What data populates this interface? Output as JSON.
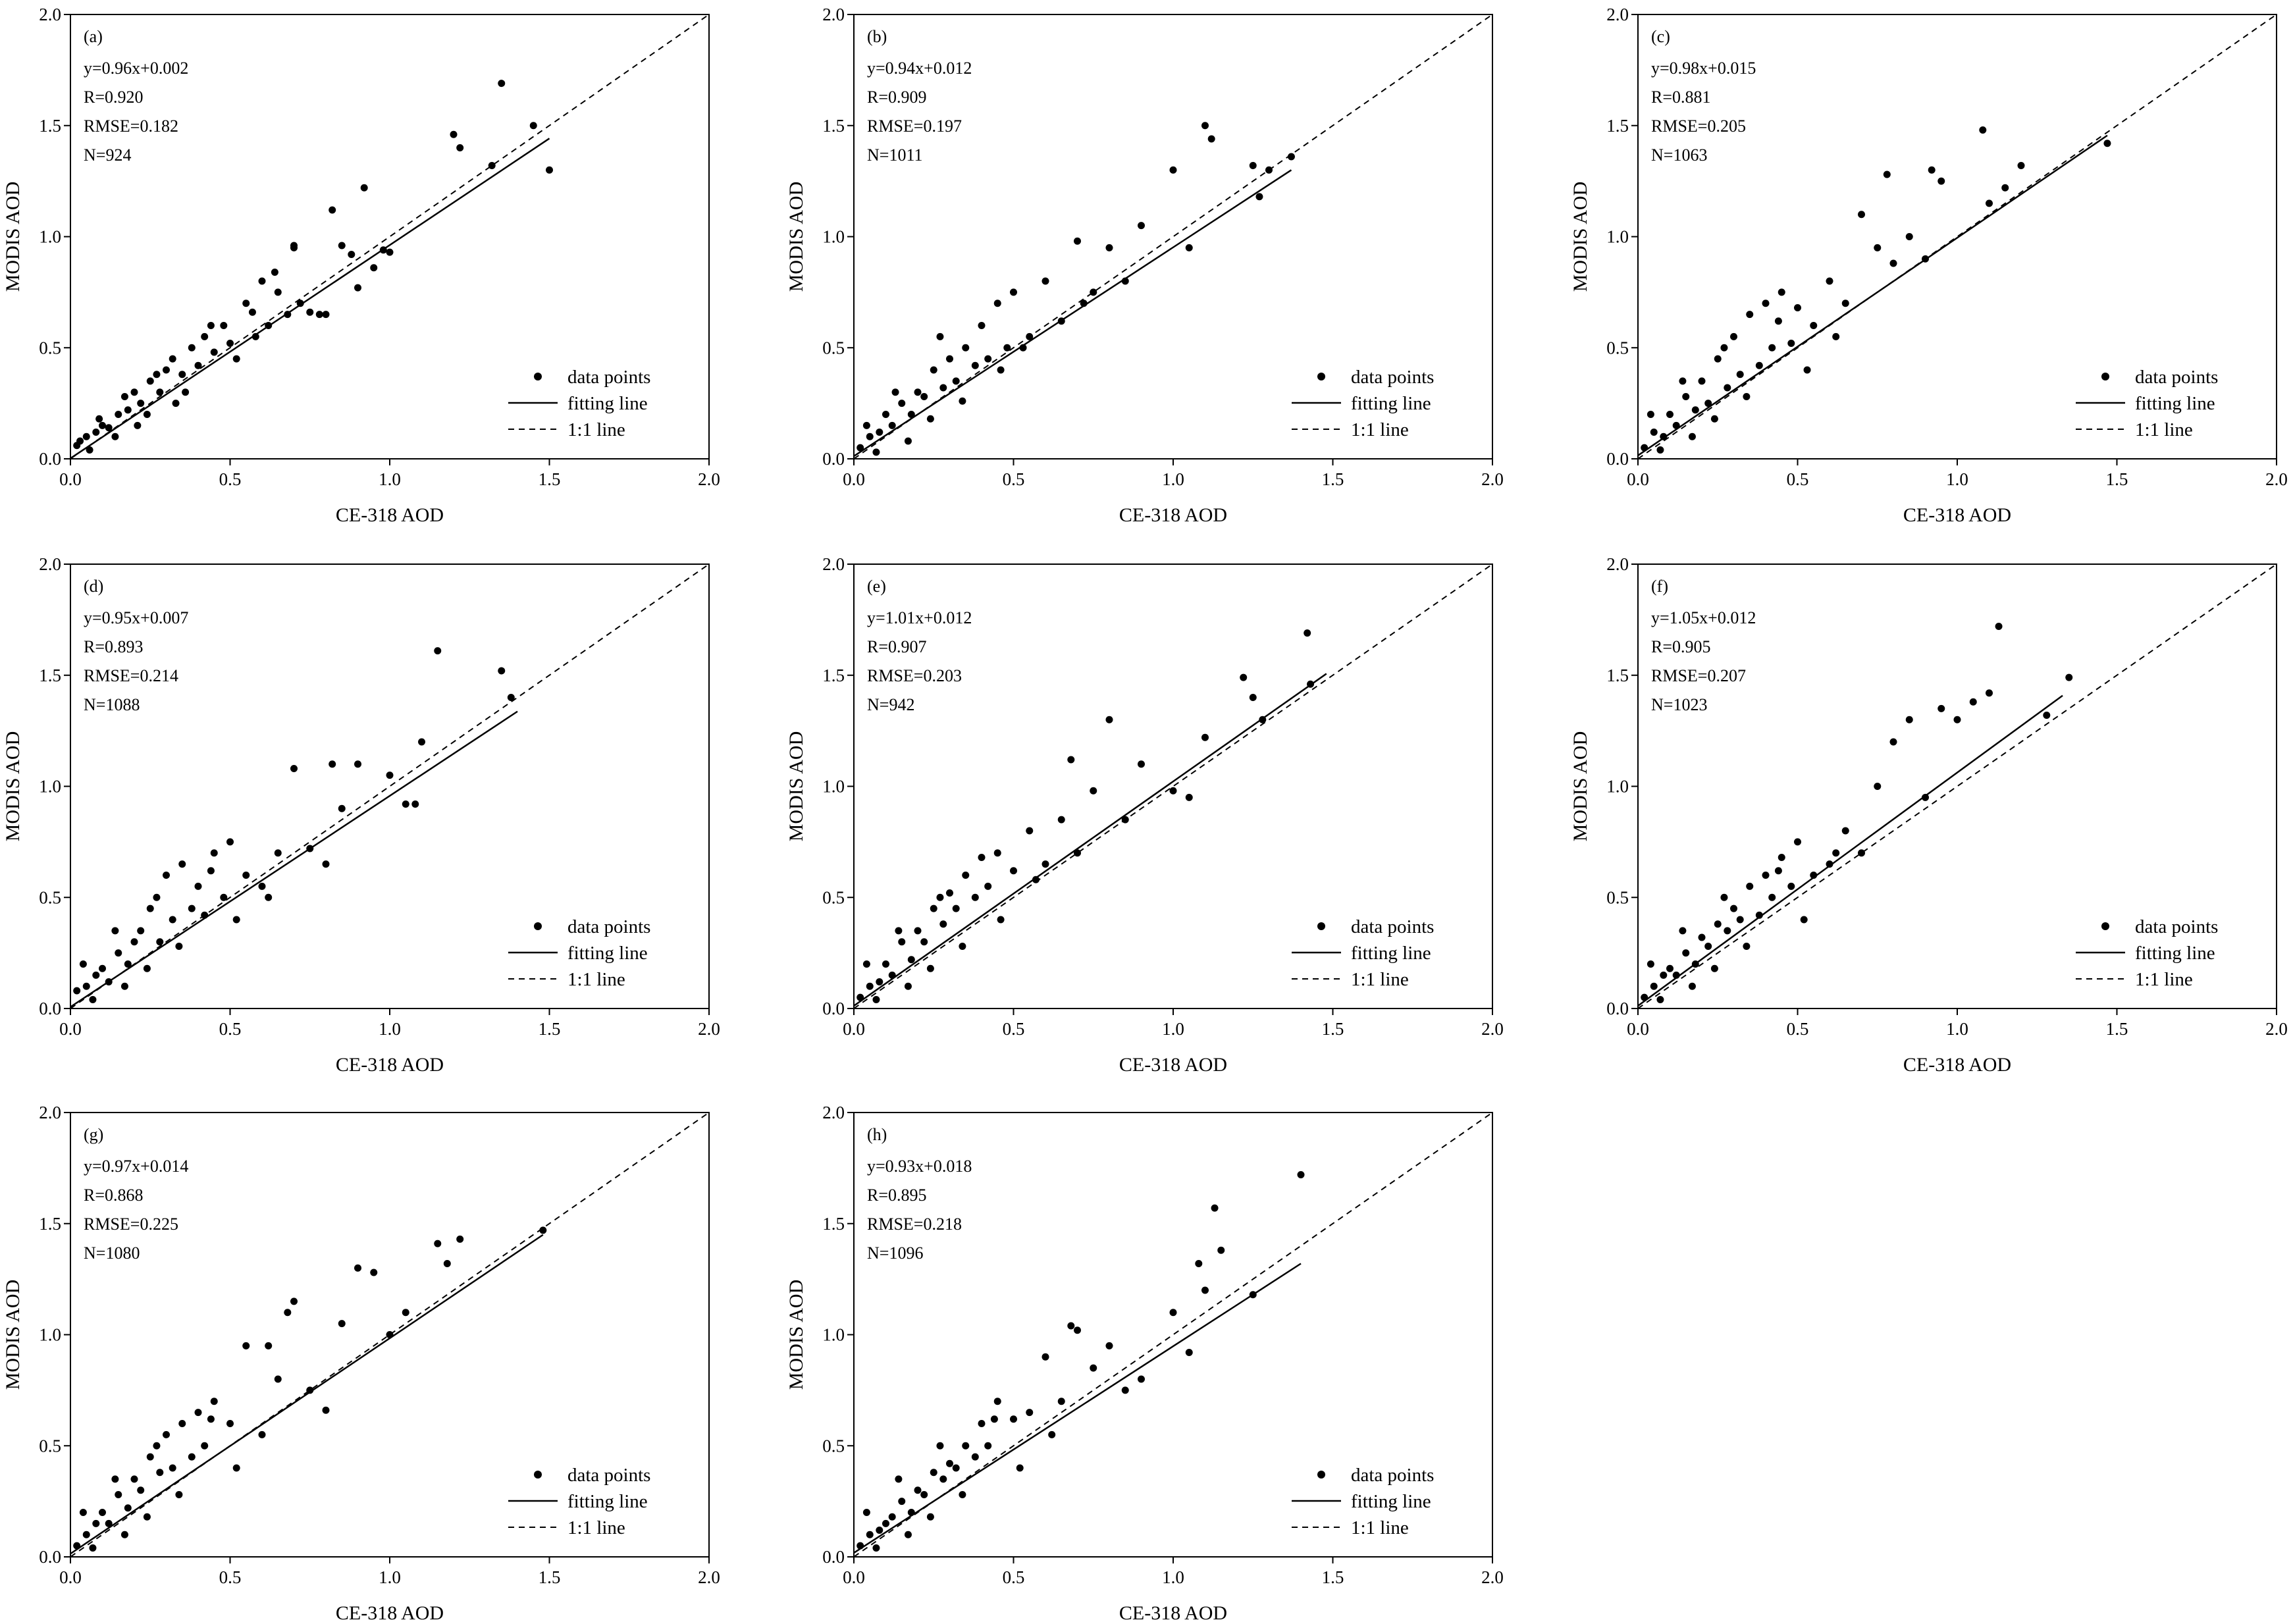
{
  "figure": {
    "x_axis_label": "CE-318 AOD",
    "y_axis_label": "MODIS AOD",
    "x_ticks": [
      "0.0",
      "0.5",
      "1.0",
      "1.5",
      "2.0"
    ],
    "y_ticks": [
      "0.0",
      "0.5",
      "1.0",
      "1.5",
      "2.0"
    ],
    "legend": {
      "points": "data points",
      "fit": "fitting line",
      "one_to_one": "1:1 line"
    },
    "colors": {
      "points": "#000000",
      "lines": "#000000",
      "background": "#ffffff"
    }
  },
  "chart_data": [
    {
      "type": "scatter",
      "panel_label": "(a)",
      "equation": "y=0.96x+0.002",
      "r_text": "R=0.920",
      "rmse_text": "RMSE=0.182",
      "n_text": "N=924",
      "slope": 0.96,
      "intercept": 0.002,
      "fit_x_max": 1.5,
      "xlim": [
        0,
        2
      ],
      "ylim": [
        0,
        2
      ],
      "xlabel": "CE-318 AOD",
      "ylabel": "MODIS AOD",
      "series": [
        {
          "name": "data points",
          "x": [
            0.02,
            0.05,
            0.08,
            0.1,
            0.12,
            0.15,
            0.18,
            0.2,
            0.22,
            0.25,
            0.28,
            0.3,
            0.32,
            0.35,
            0.38,
            0.4,
            0.42,
            0.45,
            0.48,
            0.5,
            0.55,
            0.58,
            0.6,
            0.62,
            0.65,
            0.68,
            0.7,
            0.72,
            0.75,
            0.78,
            0.8,
            0.82,
            0.85,
            0.88,
            0.9,
            0.92,
            0.95,
            0.98,
            1.0,
            1.2,
            1.22,
            1.32,
            1.35,
            1.45,
            1.5,
            0.03,
            0.06,
            0.09,
            0.14,
            0.17,
            0.21,
            0.24,
            0.27,
            0.33,
            0.36,
            0.44,
            0.52,
            0.57,
            0.64,
            0.7
          ],
          "y": [
            0.06,
            0.1,
            0.12,
            0.15,
            0.14,
            0.2,
            0.22,
            0.3,
            0.25,
            0.35,
            0.3,
            0.4,
            0.45,
            0.38,
            0.5,
            0.42,
            0.55,
            0.48,
            0.6,
            0.52,
            0.7,
            0.55,
            0.8,
            0.6,
            0.75,
            0.65,
            0.95,
            0.7,
            0.66,
            0.65,
            0.65,
            1.12,
            0.96,
            0.92,
            0.77,
            1.22,
            0.86,
            0.94,
            0.93,
            1.46,
            1.4,
            1.32,
            1.69,
            1.5,
            1.3,
            0.08,
            0.04,
            0.18,
            0.1,
            0.28,
            0.15,
            0.2,
            0.38,
            0.25,
            0.3,
            0.6,
            0.45,
            0.66,
            0.84,
            0.96
          ]
        }
      ]
    },
    {
      "type": "scatter",
      "panel_label": "(b)",
      "equation": "y=0.94x+0.012",
      "r_text": "R=0.909",
      "rmse_text": "RMSE=0.197",
      "n_text": "N=1011",
      "slope": 0.94,
      "intercept": 0.012,
      "fit_x_max": 1.37,
      "xlim": [
        0,
        2
      ],
      "ylim": [
        0,
        2
      ],
      "xlabel": "CE-318 AOD",
      "ylabel": "MODIS AOD",
      "series": [
        {
          "name": "data points",
          "x": [
            0.02,
            0.05,
            0.08,
            0.1,
            0.12,
            0.15,
            0.18,
            0.2,
            0.22,
            0.25,
            0.28,
            0.3,
            0.32,
            0.35,
            0.38,
            0.4,
            0.42,
            0.45,
            0.48,
            0.5,
            0.55,
            0.6,
            0.65,
            0.7,
            0.72,
            0.75,
            0.8,
            0.85,
            0.9,
            1.0,
            1.05,
            1.1,
            1.12,
            1.25,
            1.27,
            1.3,
            1.37,
            0.04,
            0.07,
            0.13,
            0.17,
            0.24,
            0.27,
            0.34,
            0.46,
            0.53
          ],
          "y": [
            0.05,
            0.1,
            0.12,
            0.2,
            0.15,
            0.25,
            0.2,
            0.3,
            0.28,
            0.4,
            0.32,
            0.45,
            0.35,
            0.5,
            0.42,
            0.6,
            0.45,
            0.7,
            0.5,
            0.75,
            0.55,
            0.8,
            0.62,
            0.98,
            0.7,
            0.75,
            0.95,
            0.8,
            1.05,
            1.3,
            0.95,
            1.5,
            1.44,
            1.32,
            1.18,
            1.3,
            1.36,
            0.15,
            0.03,
            0.3,
            0.08,
            0.18,
            0.55,
            0.26,
            0.4,
            0.5
          ]
        }
      ]
    },
    {
      "type": "scatter",
      "panel_label": "(c)",
      "equation": "y=0.98x+0.015",
      "r_text": "R=0.881",
      "rmse_text": "RMSE=0.205",
      "n_text": "N=1063",
      "slope": 0.98,
      "intercept": 0.015,
      "fit_x_max": 1.47,
      "xlim": [
        0,
        2
      ],
      "ylim": [
        0,
        2
      ],
      "xlabel": "CE-318 AOD",
      "ylabel": "MODIS AOD",
      "series": [
        {
          "name": "data points",
          "x": [
            0.02,
            0.05,
            0.08,
            0.1,
            0.12,
            0.15,
            0.18,
            0.2,
            0.22,
            0.25,
            0.28,
            0.3,
            0.32,
            0.35,
            0.38,
            0.4,
            0.42,
            0.45,
            0.48,
            0.5,
            0.55,
            0.6,
            0.65,
            0.7,
            0.75,
            0.78,
            0.8,
            0.85,
            0.9,
            0.92,
            0.95,
            1.08,
            1.1,
            1.15,
            1.2,
            1.47,
            0.04,
            0.07,
            0.14,
            0.17,
            0.24,
            0.27,
            0.34,
            0.44,
            0.53,
            0.62
          ],
          "y": [
            0.05,
            0.12,
            0.1,
            0.2,
            0.15,
            0.28,
            0.22,
            0.35,
            0.25,
            0.45,
            0.32,
            0.55,
            0.38,
            0.65,
            0.42,
            0.7,
            0.5,
            0.75,
            0.52,
            0.68,
            0.6,
            0.8,
            0.7,
            1.1,
            0.95,
            1.28,
            0.88,
            1.0,
            0.9,
            1.3,
            1.25,
            1.48,
            1.15,
            1.22,
            1.32,
            1.42,
            0.2,
            0.04,
            0.35,
            0.1,
            0.18,
            0.5,
            0.28,
            0.62,
            0.4,
            0.55
          ]
        }
      ]
    },
    {
      "type": "scatter",
      "panel_label": "(d)",
      "equation": "y=0.95x+0.007",
      "r_text": "R=0.893",
      "rmse_text": "RMSE=0.214",
      "n_text": "N=1088",
      "slope": 0.95,
      "intercept": 0.007,
      "fit_x_max": 1.4,
      "xlim": [
        0,
        2
      ],
      "ylim": [
        0,
        2
      ],
      "xlabel": "CE-318 AOD",
      "ylabel": "MODIS AOD",
      "series": [
        {
          "name": "data points",
          "x": [
            0.02,
            0.05,
            0.08,
            0.1,
            0.12,
            0.15,
            0.18,
            0.2,
            0.22,
            0.25,
            0.28,
            0.3,
            0.32,
            0.35,
            0.38,
            0.4,
            0.42,
            0.45,
            0.48,
            0.5,
            0.55,
            0.6,
            0.65,
            0.7,
            0.75,
            0.8,
            0.82,
            0.85,
            0.9,
            1.0,
            1.05,
            1.08,
            1.1,
            1.15,
            1.35,
            1.38,
            0.04,
            0.07,
            0.14,
            0.17,
            0.24,
            0.27,
            0.34,
            0.44,
            0.52,
            0.62
          ],
          "y": [
            0.08,
            0.1,
            0.15,
            0.18,
            0.12,
            0.25,
            0.2,
            0.3,
            0.35,
            0.45,
            0.3,
            0.6,
            0.4,
            0.65,
            0.45,
            0.55,
            0.42,
            0.7,
            0.5,
            0.75,
            0.6,
            0.55,
            0.7,
            1.08,
            0.72,
            0.65,
            1.1,
            0.9,
            1.1,
            1.05,
            0.92,
            0.92,
            1.2,
            1.61,
            1.52,
            1.4,
            0.2,
            0.04,
            0.35,
            0.1,
            0.18,
            0.5,
            0.28,
            0.62,
            0.4,
            0.5
          ]
        }
      ]
    },
    {
      "type": "scatter",
      "panel_label": "(e)",
      "equation": "y=1.01x+0.012",
      "r_text": "R=0.907",
      "rmse_text": "RMSE=0.203",
      "n_text": "N=942",
      "slope": 1.01,
      "intercept": 0.012,
      "fit_x_max": 1.48,
      "xlim": [
        0,
        2
      ],
      "ylim": [
        0,
        2
      ],
      "xlabel": "CE-318 AOD",
      "ylabel": "MODIS AOD",
      "series": [
        {
          "name": "data points",
          "x": [
            0.02,
            0.05,
            0.08,
            0.1,
            0.12,
            0.15,
            0.18,
            0.2,
            0.22,
            0.25,
            0.28,
            0.3,
            0.32,
            0.35,
            0.38,
            0.4,
            0.42,
            0.45,
            0.5,
            0.55,
            0.6,
            0.65,
            0.68,
            0.7,
            0.75,
            0.8,
            0.85,
            0.9,
            1.0,
            1.05,
            1.1,
            1.22,
            1.25,
            1.28,
            1.42,
            1.43,
            0.04,
            0.07,
            0.14,
            0.17,
            0.24,
            0.27,
            0.34,
            0.46,
            0.57
          ],
          "y": [
            0.05,
            0.1,
            0.12,
            0.2,
            0.15,
            0.3,
            0.22,
            0.35,
            0.3,
            0.45,
            0.38,
            0.52,
            0.45,
            0.6,
            0.5,
            0.68,
            0.55,
            0.7,
            0.62,
            0.8,
            0.65,
            0.85,
            1.12,
            0.7,
            0.98,
            1.3,
            0.85,
            1.1,
            0.98,
            0.95,
            1.22,
            1.49,
            1.4,
            1.3,
            1.69,
            1.46,
            0.2,
            0.04,
            0.35,
            0.1,
            0.18,
            0.5,
            0.28,
            0.4,
            0.58
          ]
        }
      ]
    },
    {
      "type": "scatter",
      "panel_label": "(f)",
      "equation": "y=1.05x+0.012",
      "r_text": "R=0.905",
      "rmse_text": "RMSE=0.207",
      "n_text": "N=1023",
      "slope": 1.05,
      "intercept": 0.012,
      "fit_x_max": 1.33,
      "xlim": [
        0,
        2
      ],
      "ylim": [
        0,
        2
      ],
      "xlabel": "CE-318 AOD",
      "ylabel": "MODIS AOD",
      "series": [
        {
          "name": "data points",
          "x": [
            0.02,
            0.05,
            0.08,
            0.1,
            0.12,
            0.15,
            0.18,
            0.2,
            0.22,
            0.25,
            0.28,
            0.3,
            0.32,
            0.35,
            0.38,
            0.4,
            0.42,
            0.45,
            0.48,
            0.5,
            0.55,
            0.6,
            0.65,
            0.7,
            0.75,
            0.8,
            0.85,
            0.9,
            0.95,
            1.0,
            1.05,
            1.1,
            1.13,
            1.28,
            1.35,
            0.04,
            0.07,
            0.14,
            0.17,
            0.24,
            0.27,
            0.34,
            0.44,
            0.52,
            0.62
          ],
          "y": [
            0.05,
            0.1,
            0.15,
            0.18,
            0.15,
            0.25,
            0.2,
            0.32,
            0.28,
            0.38,
            0.35,
            0.45,
            0.4,
            0.55,
            0.42,
            0.6,
            0.5,
            0.68,
            0.55,
            0.75,
            0.6,
            0.65,
            0.8,
            0.7,
            1.0,
            1.2,
            1.3,
            0.95,
            1.35,
            1.3,
            1.38,
            1.42,
            1.72,
            1.32,
            1.49,
            0.2,
            0.04,
            0.35,
            0.1,
            0.18,
            0.5,
            0.28,
            0.62,
            0.4,
            0.7
          ]
        }
      ]
    },
    {
      "type": "scatter",
      "panel_label": "(g)",
      "equation": "y=0.97x+0.014",
      "r_text": "R=0.868",
      "rmse_text": "RMSE=0.225",
      "n_text": "N=1080",
      "slope": 0.97,
      "intercept": 0.014,
      "fit_x_max": 1.48,
      "xlim": [
        0,
        2
      ],
      "ylim": [
        0,
        2
      ],
      "xlabel": "CE-318 AOD",
      "ylabel": "MODIS AOD",
      "series": [
        {
          "name": "data points",
          "x": [
            0.02,
            0.05,
            0.08,
            0.1,
            0.12,
            0.15,
            0.18,
            0.2,
            0.22,
            0.25,
            0.28,
            0.3,
            0.32,
            0.35,
            0.38,
            0.4,
            0.42,
            0.45,
            0.5,
            0.55,
            0.6,
            0.62,
            0.65,
            0.7,
            0.75,
            0.8,
            0.85,
            0.9,
            0.95,
            1.0,
            1.05,
            1.15,
            1.18,
            1.22,
            1.48,
            0.04,
            0.07,
            0.14,
            0.17,
            0.24,
            0.27,
            0.34,
            0.44,
            0.52,
            0.68
          ],
          "y": [
            0.05,
            0.1,
            0.15,
            0.2,
            0.15,
            0.28,
            0.22,
            0.35,
            0.3,
            0.45,
            0.38,
            0.55,
            0.4,
            0.6,
            0.45,
            0.65,
            0.5,
            0.7,
            0.6,
            0.95,
            0.55,
            0.95,
            0.8,
            1.15,
            0.75,
            0.66,
            1.05,
            1.3,
            1.28,
            1.0,
            1.1,
            1.41,
            1.32,
            1.43,
            1.47,
            0.2,
            0.04,
            0.35,
            0.1,
            0.18,
            0.5,
            0.28,
            0.62,
            0.4,
            1.1
          ]
        }
      ]
    },
    {
      "type": "scatter",
      "panel_label": "(h)",
      "equation": "y=0.93x+0.018",
      "r_text": "R=0.895",
      "rmse_text": "RMSE=0.218",
      "n_text": "N=1096",
      "slope": 0.93,
      "intercept": 0.018,
      "fit_x_max": 1.4,
      "xlim": [
        0,
        2
      ],
      "ylim": [
        0,
        2
      ],
      "xlabel": "CE-318 AOD",
      "ylabel": "MODIS AOD",
      "series": [
        {
          "name": "data points",
          "x": [
            0.02,
            0.05,
            0.08,
            0.1,
            0.12,
            0.15,
            0.18,
            0.2,
            0.22,
            0.25,
            0.28,
            0.3,
            0.32,
            0.35,
            0.38,
            0.4,
            0.42,
            0.45,
            0.5,
            0.55,
            0.6,
            0.65,
            0.68,
            0.7,
            0.75,
            0.8,
            0.85,
            0.9,
            1.0,
            1.05,
            1.08,
            1.1,
            1.13,
            1.15,
            1.25,
            1.4,
            0.04,
            0.07,
            0.14,
            0.17,
            0.24,
            0.27,
            0.34,
            0.44,
            0.52,
            0.62
          ],
          "y": [
            0.05,
            0.1,
            0.12,
            0.15,
            0.18,
            0.25,
            0.2,
            0.3,
            0.28,
            0.38,
            0.35,
            0.42,
            0.4,
            0.5,
            0.45,
            0.6,
            0.5,
            0.7,
            0.62,
            0.65,
            0.9,
            0.7,
            1.04,
            1.02,
            0.85,
            0.95,
            0.75,
            0.8,
            1.1,
            0.92,
            1.32,
            1.2,
            1.57,
            1.38,
            1.18,
            1.72,
            0.2,
            0.04,
            0.35,
            0.1,
            0.18,
            0.5,
            0.28,
            0.62,
            0.4,
            0.55
          ]
        }
      ]
    }
  ]
}
